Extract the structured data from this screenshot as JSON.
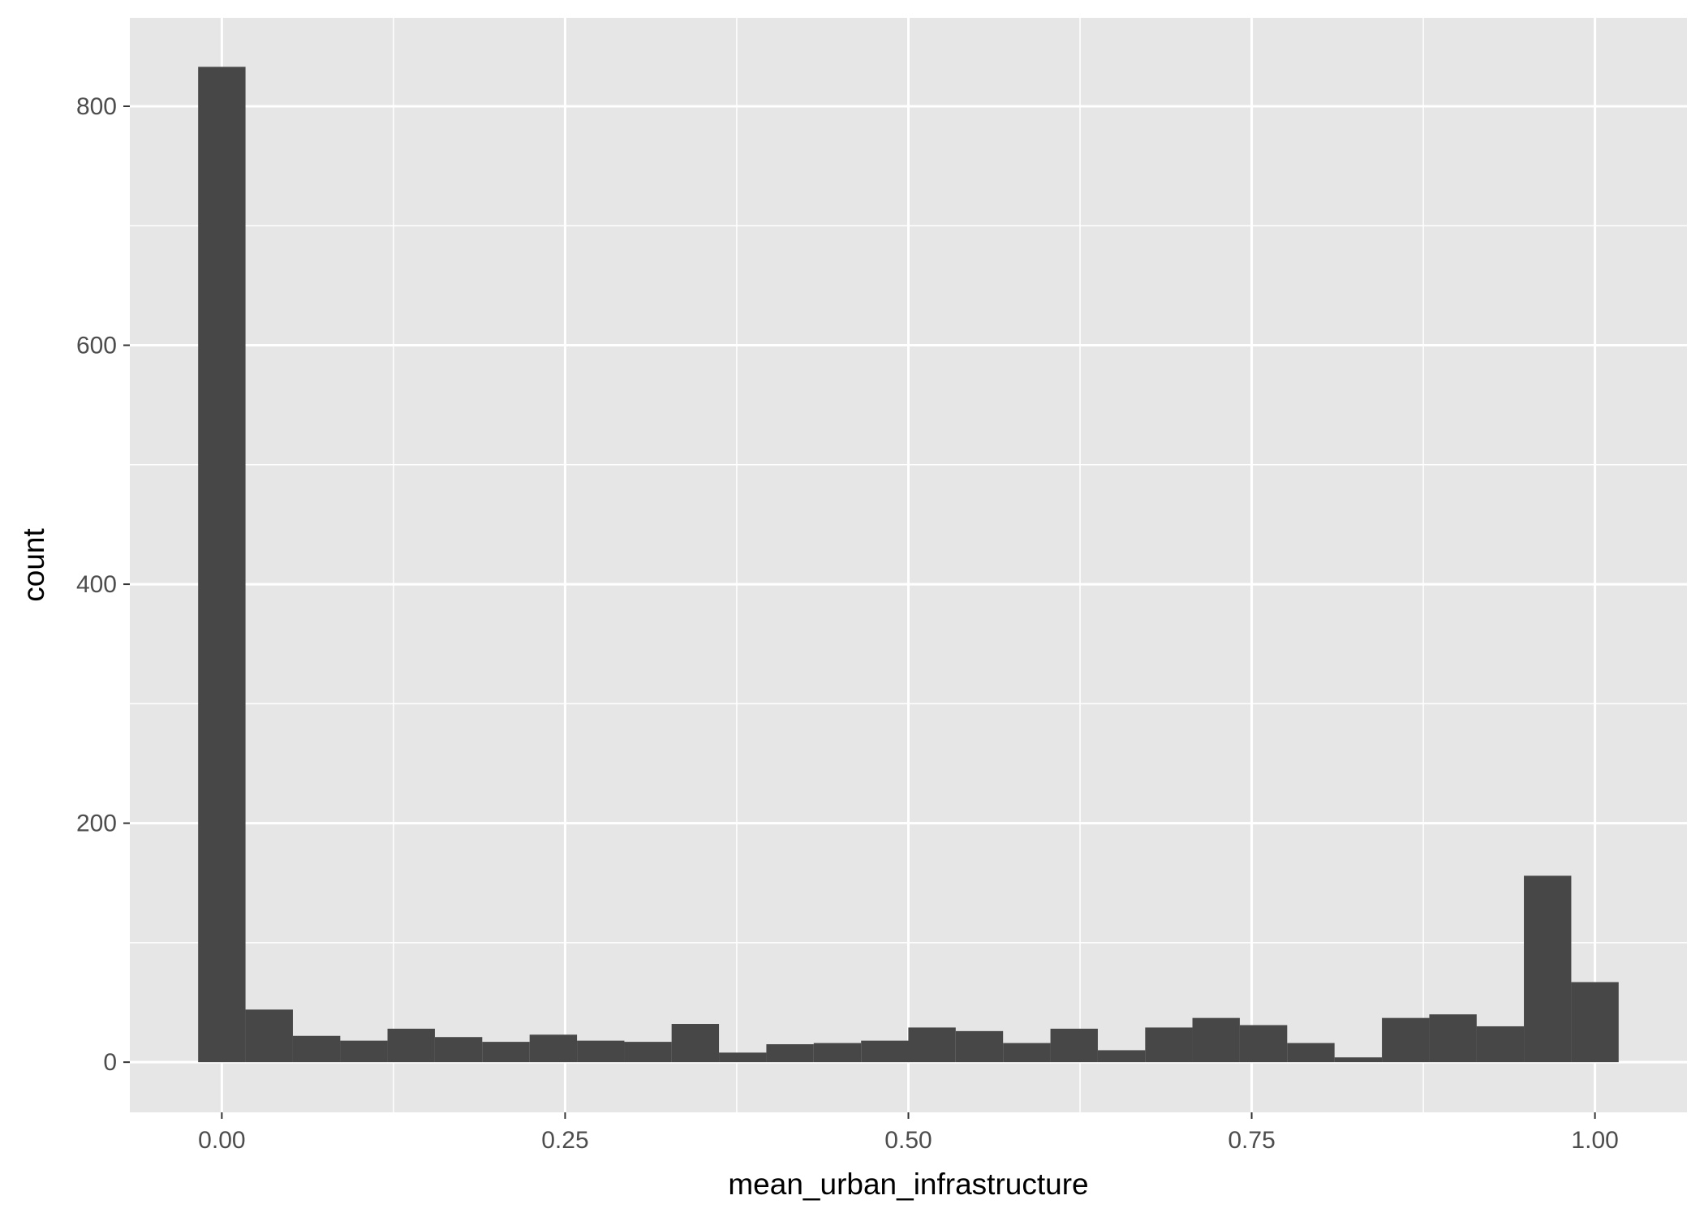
{
  "chart_data": {
    "type": "bar",
    "subtype": "histogram",
    "title": "",
    "xlabel": "mean_urban_infrastructure",
    "ylabel": "count",
    "xlim": [
      -0.067,
      1.067
    ],
    "ylim": [
      -42,
      874
    ],
    "x_ticks": [
      0,
      0.25,
      0.5,
      0.75,
      1
    ],
    "x_tick_labels": [
      "0.00",
      "0.25",
      "0.50",
      "0.75",
      "1.00"
    ],
    "y_ticks": [
      0,
      200,
      400,
      600,
      800
    ],
    "y_tick_labels": [
      "0",
      "200",
      "400",
      "600",
      "800"
    ],
    "bin_width": 0.0345,
    "bin_centers": [
      0.0,
      0.0345,
      0.069,
      0.1034,
      0.1379,
      0.1724,
      0.2069,
      0.2414,
      0.2759,
      0.3103,
      0.3448,
      0.3793,
      0.4138,
      0.4483,
      0.4828,
      0.5172,
      0.5517,
      0.5862,
      0.6207,
      0.6552,
      0.6897,
      0.7241,
      0.7586,
      0.7931,
      0.8276,
      0.8621,
      0.8966,
      0.931,
      0.9655,
      1.0
    ],
    "values": [
      833,
      44,
      22,
      18,
      28,
      21,
      17,
      23,
      18,
      17,
      32,
      8,
      15,
      16,
      18,
      29,
      26,
      16,
      28,
      10,
      29,
      37,
      31,
      16,
      4,
      37,
      40,
      30,
      156,
      67
    ],
    "bar_color": "#474747",
    "panel_background": "#e6e6e6",
    "grid": true,
    "grid_color": "#ffffff",
    "legend": "none"
  }
}
